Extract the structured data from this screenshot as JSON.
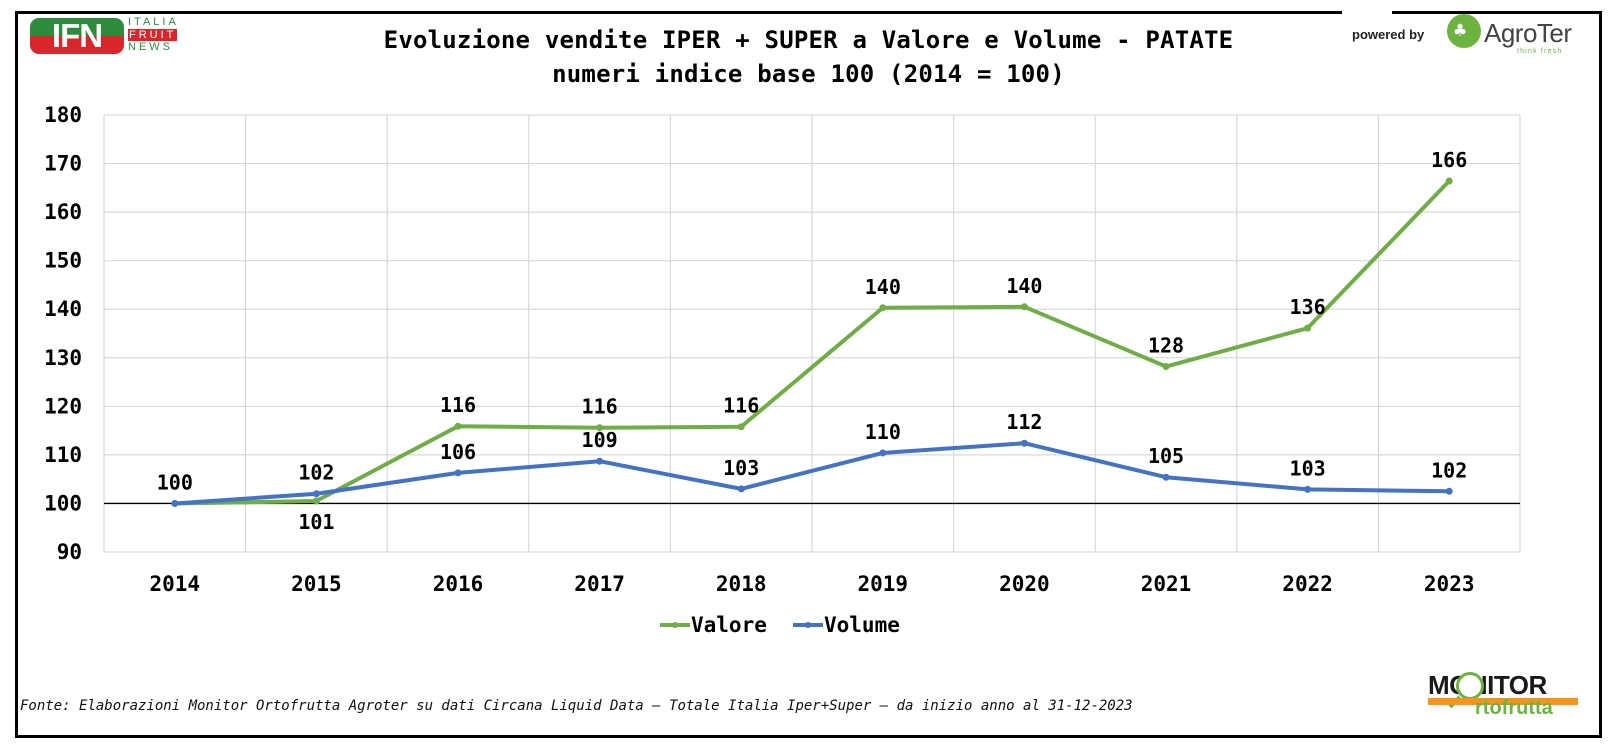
{
  "header": {
    "title_line1": "Evoluzione vendite IPER + SUPER a Valore e Volume - PATATE",
    "title_line2": "numeri indice base 100 (2014 = 100)"
  },
  "logos": {
    "ifn": {
      "mark": "IFN",
      "line1": "ITALIA",
      "line2": "FRUIT",
      "line3": "NEWS"
    },
    "powered_by": "powered by",
    "agroter": {
      "name": "AgroTer",
      "tagline": "think fresh"
    },
    "monitor": {
      "word": "MONITOR",
      "sub": "rtofrutta"
    }
  },
  "footer": {
    "source": "Fonte: Elaborazioni Monitor Ortofrutta Agroter su dati Circana Liquid Data – Totale Italia Iper+Super –  da inizio anno al 31-12-2023"
  },
  "chart_data": {
    "type": "line",
    "title": "Evoluzione vendite IPER + SUPER a Valore e Volume - PATATE",
    "subtitle": "numeri indice base 100 (2014 = 100)",
    "xlabel": "",
    "ylabel": "",
    "categories": [
      "2014",
      "2015",
      "2016",
      "2017",
      "2018",
      "2019",
      "2020",
      "2021",
      "2022",
      "2023"
    ],
    "ylim": [
      90,
      180
    ],
    "yticks": [
      90,
      100,
      110,
      120,
      130,
      140,
      150,
      160,
      170,
      180
    ],
    "grid": true,
    "reference_line": 100,
    "legend_position": "bottom",
    "series": [
      {
        "name": "Valore",
        "color": "#70ad47",
        "values": [
          100,
          100.5,
          115.9,
          115.6,
          115.8,
          140.3,
          140.5,
          128.2,
          136.1,
          166.4
        ],
        "labels": [
          "",
          "101",
          "116",
          "116",
          "116",
          "140",
          "140",
          "128",
          "136",
          "166"
        ],
        "label_side": [
          "above",
          "below",
          "above",
          "above",
          "above",
          "above",
          "above",
          "above",
          "above",
          "above"
        ]
      },
      {
        "name": "Volume",
        "color": "#4472c4",
        "values": [
          100,
          102,
          106.3,
          108.7,
          103,
          110.4,
          112.4,
          105.4,
          102.9,
          102.5
        ],
        "labels": [
          "100",
          "102",
          "106",
          "109",
          "103",
          "110",
          "112",
          "105",
          "103",
          "102"
        ],
        "label_side": [
          "above",
          "above",
          "above",
          "above",
          "above",
          "above",
          "above",
          "above",
          "above",
          "above"
        ]
      }
    ]
  }
}
